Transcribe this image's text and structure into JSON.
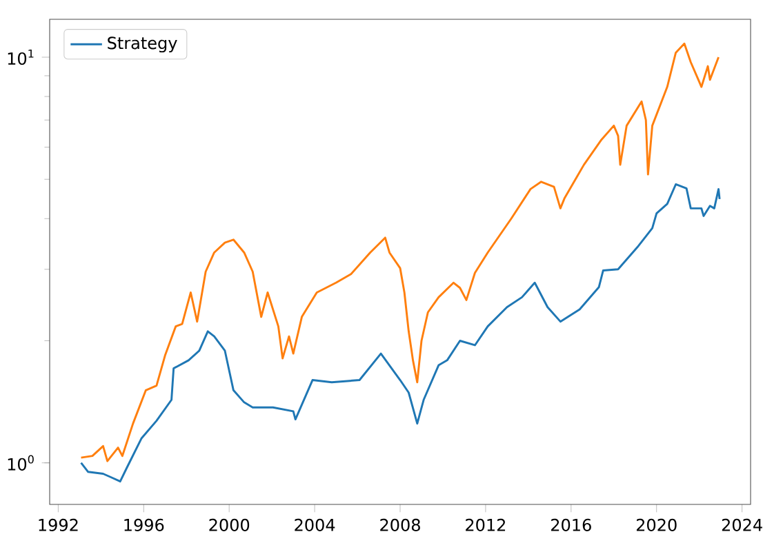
{
  "chart_data": {
    "type": "line",
    "log": "y",
    "legend": "top left",
    "marker": "none",
    "line_style": "solid",
    "xlim": [
      1991.6,
      2024.4
    ],
    "ylim": [
      0.79,
      12.4
    ],
    "xticks": [
      1992,
      1996,
      2000,
      2004,
      2008,
      2012,
      2016,
      2020,
      2024
    ],
    "yticks": [
      {
        "value": 1,
        "label": "10$^{0}$"
      },
      {
        "value": 10,
        "label": "10$^{1}$"
      }
    ],
    "series": [
      {
        "name": "Strategy",
        "color": "#1f77b4",
        "x": [
          1993.07,
          1993.4,
          1994.1,
          1994.5,
          1994.9,
          1995.2,
          1995.9,
          1996.6,
          1997.3,
          1997.4,
          1998.1,
          1998.6,
          1999.0,
          1999.3,
          1999.8,
          2000.2,
          2000.7,
          2001.1,
          2002.05,
          2003.0,
          2003.1,
          2003.9,
          2004.8,
          2006.1,
          2007.1,
          2008.0,
          2008.4,
          2008.8,
          2009.1,
          2009.8,
          2010.2,
          2010.8,
          2011.5,
          2012.1,
          2013.0,
          2013.7,
          2014.3,
          2014.9,
          2015.5,
          2016.4,
          2017.3,
          2017.5,
          2018.2,
          2019.1,
          2019.8,
          2020.0,
          2020.5,
          2020.9,
          2021.4,
          2021.6,
          2022.1,
          2022.2,
          2022.5,
          2022.7,
          2022.9,
          2022.95
        ],
        "values": [
          1.0,
          0.95,
          0.94,
          0.92,
          0.9,
          0.97,
          1.15,
          1.27,
          1.43,
          1.71,
          1.79,
          1.89,
          2.11,
          2.05,
          1.89,
          1.51,
          1.41,
          1.37,
          1.37,
          1.34,
          1.28,
          1.6,
          1.58,
          1.6,
          1.86,
          1.6,
          1.49,
          1.25,
          1.43,
          1.74,
          1.79,
          2.0,
          1.95,
          2.17,
          2.42,
          2.56,
          2.78,
          2.42,
          2.23,
          2.39,
          2.71,
          2.98,
          3.0,
          3.4,
          3.79,
          4.12,
          4.35,
          4.86,
          4.75,
          4.24,
          4.24,
          4.06,
          4.3,
          4.24,
          4.73,
          4.47
        ]
      },
      {
        "color": "#ff7f0e",
        "x": [
          1993.07,
          1993.6,
          1994.1,
          1994.3,
          1994.8,
          1995.0,
          1995.5,
          1996.1,
          1996.6,
          1997.0,
          1997.5,
          1997.8,
          1998.2,
          1998.5,
          1998.9,
          1999.3,
          1999.8,
          2000.2,
          2000.7,
          2001.1,
          2001.5,
          2001.8,
          2002.3,
          2002.5,
          2002.8,
          2003.0,
          2003.4,
          2004.1,
          2005.0,
          2005.7,
          2006.6,
          2007.3,
          2007.5,
          2008.0,
          2008.2,
          2008.4,
          2008.6,
          2008.8,
          2009.0,
          2009.3,
          2009.8,
          2010.5,
          2010.8,
          2011.1,
          2011.5,
          2012.1,
          2013.2,
          2014.1,
          2014.6,
          2015.2,
          2015.5,
          2015.7,
          2016.6,
          2017.4,
          2018.0,
          2018.2,
          2018.3,
          2018.6,
          2019.3,
          2019.5,
          2019.6,
          2019.8,
          2020.5,
          2020.9,
          2021.3,
          2021.6,
          2022.0,
          2022.1,
          2022.4,
          2022.5,
          2022.9
        ],
        "values": [
          1.03,
          1.04,
          1.1,
          1.01,
          1.09,
          1.04,
          1.25,
          1.51,
          1.55,
          1.84,
          2.17,
          2.2,
          2.63,
          2.23,
          2.96,
          3.3,
          3.49,
          3.55,
          3.3,
          2.96,
          2.29,
          2.63,
          2.17,
          1.81,
          2.05,
          1.86,
          2.29,
          2.63,
          2.78,
          2.92,
          3.3,
          3.59,
          3.3,
          3.02,
          2.63,
          2.11,
          1.79,
          1.58,
          2.0,
          2.35,
          2.56,
          2.78,
          2.7,
          2.52,
          2.94,
          3.3,
          4.0,
          4.73,
          4.93,
          4.79,
          4.24,
          4.5,
          5.43,
          6.24,
          6.78,
          6.4,
          5.43,
          6.78,
          7.78,
          7.0,
          5.14,
          6.78,
          8.45,
          10.26,
          10.8,
          9.72,
          8.69,
          8.45,
          9.5,
          8.8,
          10.0
        ]
      }
    ]
  }
}
